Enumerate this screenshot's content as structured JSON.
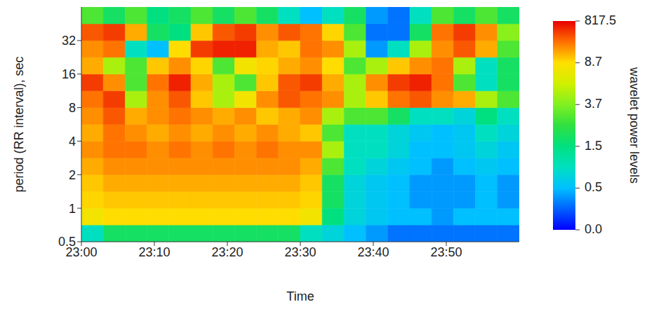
{
  "chart_data": {
    "type": "heatmap",
    "xlabel": "Time",
    "ylabel": "period (RR interval), sec",
    "xlim": [
      0,
      60
    ],
    "xticks": [
      {
        "value": 0,
        "label": "23:00"
      },
      {
        "value": 10,
        "label": "23:10"
      },
      {
        "value": 20,
        "label": "23:20"
      },
      {
        "value": 30,
        "label": "23:30"
      },
      {
        "value": 40,
        "label": "23:40"
      },
      {
        "value": 50,
        "label": "23:50"
      }
    ],
    "ylim": [
      0.5,
      64
    ],
    "yticks": [
      0.5,
      1,
      2,
      4,
      8,
      16,
      32
    ],
    "log": "y",
    "grid": false,
    "heatmap": {
      "x_edges": [
        0,
        3,
        6,
        9,
        12,
        15,
        18,
        21,
        24,
        27,
        30,
        33,
        36,
        39,
        42,
        45,
        48,
        51,
        54,
        57,
        60
      ],
      "y_edges": [
        0.5,
        0.707,
        1,
        1.414,
        2,
        2.828,
        4,
        5.657,
        8,
        11.31,
        16,
        22.63,
        32,
        45.25,
        64
      ],
      "values": [
        [
          1,
          2,
          2,
          2,
          2,
          2,
          2,
          2,
          2,
          2,
          1,
          0.8,
          0.5,
          0.4,
          0.3,
          0.3,
          0.3,
          0.3,
          0.3,
          0.3
        ],
        [
          8,
          20,
          20,
          20,
          20,
          20,
          20,
          20,
          20,
          20,
          8,
          1.5,
          0.8,
          0.6,
          0.5,
          0.5,
          0.4,
          0.5,
          0.5,
          0.5
        ],
        [
          50,
          100,
          100,
          100,
          100,
          100,
          100,
          100,
          100,
          100,
          50,
          2,
          0.8,
          0.6,
          0.5,
          0.4,
          0.4,
          0.4,
          0.5,
          0.4
        ],
        [
          100,
          200,
          200,
          200,
          200,
          200,
          200,
          200,
          200,
          200,
          100,
          2,
          0.8,
          0.6,
          0.5,
          0.4,
          0.4,
          0.4,
          0.5,
          0.4
        ],
        [
          200,
          300,
          300,
          300,
          300,
          300,
          300,
          300,
          300,
          300,
          200,
          3,
          1,
          0.8,
          0.6,
          0.5,
          0.4,
          0.5,
          0.6,
          0.5
        ],
        [
          300,
          400,
          400,
          300,
          400,
          300,
          400,
          300,
          400,
          300,
          300,
          5,
          1,
          1,
          0.8,
          0.5,
          0.5,
          0.6,
          0.8,
          0.6
        ],
        [
          200,
          400,
          300,
          200,
          300,
          200,
          300,
          200,
          300,
          200,
          100,
          3,
          1,
          1,
          0.8,
          0.6,
          0.5,
          0.6,
          1,
          0.8
        ],
        [
          300,
          500,
          200,
          300,
          400,
          300,
          200,
          300,
          100,
          200,
          300,
          5,
          3,
          3,
          2,
          1,
          1,
          0.8,
          1.5,
          1
        ],
        [
          400,
          600,
          5,
          300,
          500,
          100,
          5,
          8,
          300,
          500,
          400,
          300,
          5,
          100,
          400,
          500,
          300,
          200,
          5,
          3
        ],
        [
          600,
          300,
          3,
          400,
          700,
          200,
          5,
          3,
          100,
          500,
          600,
          200,
          5,
          300,
          600,
          700,
          400,
          3,
          1,
          2
        ],
        [
          200,
          5,
          3,
          100,
          300,
          50,
          3,
          8,
          50,
          200,
          300,
          20,
          3,
          5,
          100,
          300,
          400,
          5,
          1,
          2
        ],
        [
          300,
          400,
          1,
          0.5,
          20,
          600,
          700,
          700,
          200,
          100,
          400,
          300,
          5,
          0.4,
          1,
          5,
          300,
          500,
          200,
          3
        ],
        [
          500,
          600,
          200,
          2,
          1.5,
          100,
          500,
          600,
          300,
          500,
          400,
          50,
          3,
          0.3,
          0.3,
          2,
          400,
          600,
          300,
          4
        ],
        [
          3,
          2,
          3,
          1.5,
          2,
          3,
          2,
          3,
          2,
          1,
          0.5,
          1,
          2,
          0.4,
          0.3,
          1,
          3,
          2,
          3,
          2
        ]
      ]
    },
    "colorbar": {
      "label": "wavelet power levels",
      "ticks": [
        {
          "value": 0,
          "label": "0.0"
        },
        0.5,
        1.5,
        3.7,
        8.7,
        817.5
      ],
      "colors": [
        "#0000ff",
        "#0060ff",
        "#00c0ff",
        "#00e0c0",
        "#00e080",
        "#30e040",
        "#80f020",
        "#d0f000",
        "#ffe000",
        "#ff7000",
        "#e80000"
      ]
    }
  }
}
